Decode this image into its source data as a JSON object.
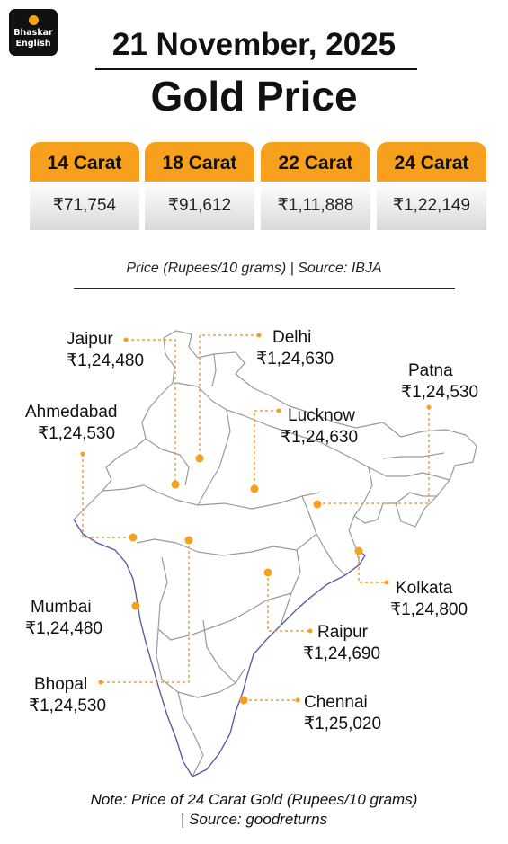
{
  "brand": {
    "line1": "Bhaskar",
    "line2": "English"
  },
  "header": {
    "date": "21 November, 2025",
    "title": "Gold Price"
  },
  "carats": [
    {
      "label": "14 Carat",
      "price": "₹71,754"
    },
    {
      "label": "18 Carat",
      "price": "₹91,612"
    },
    {
      "label": "22 Carat",
      "price": "₹1,11,888"
    },
    {
      "label": "24 Carat",
      "price": "₹1,22,149"
    }
  ],
  "source_line": "Price (Rupees/10 grams) | Source: IBJA",
  "cities": [
    {
      "name": "Jaipur",
      "price": "₹1,24,480"
    },
    {
      "name": "Delhi",
      "price": "₹1,24,630"
    },
    {
      "name": "Patna",
      "price": "₹1,24,530"
    },
    {
      "name": "Ahmedabad",
      "price": "₹1,24,530"
    },
    {
      "name": "Lucknow",
      "price": "₹1,24,630"
    },
    {
      "name": "Kolkata",
      "price": "₹1,24,800"
    },
    {
      "name": "Mumbai",
      "price": "₹1,24,480"
    },
    {
      "name": "Raipur",
      "price": "₹1,24,690"
    },
    {
      "name": "Bhopal",
      "price": "₹1,24,530"
    },
    {
      "name": "Chennai",
      "price": "₹1,25,020"
    }
  ],
  "note": {
    "line1": "Note: Price of 24 Carat Gold (Rupees/10 grams)",
    "line2": "| Source: goodreturns"
  },
  "colors": {
    "accent": "#f6a01d",
    "coast": "#5a5aa8",
    "border": "#9a9a9a",
    "text": "#111111"
  }
}
